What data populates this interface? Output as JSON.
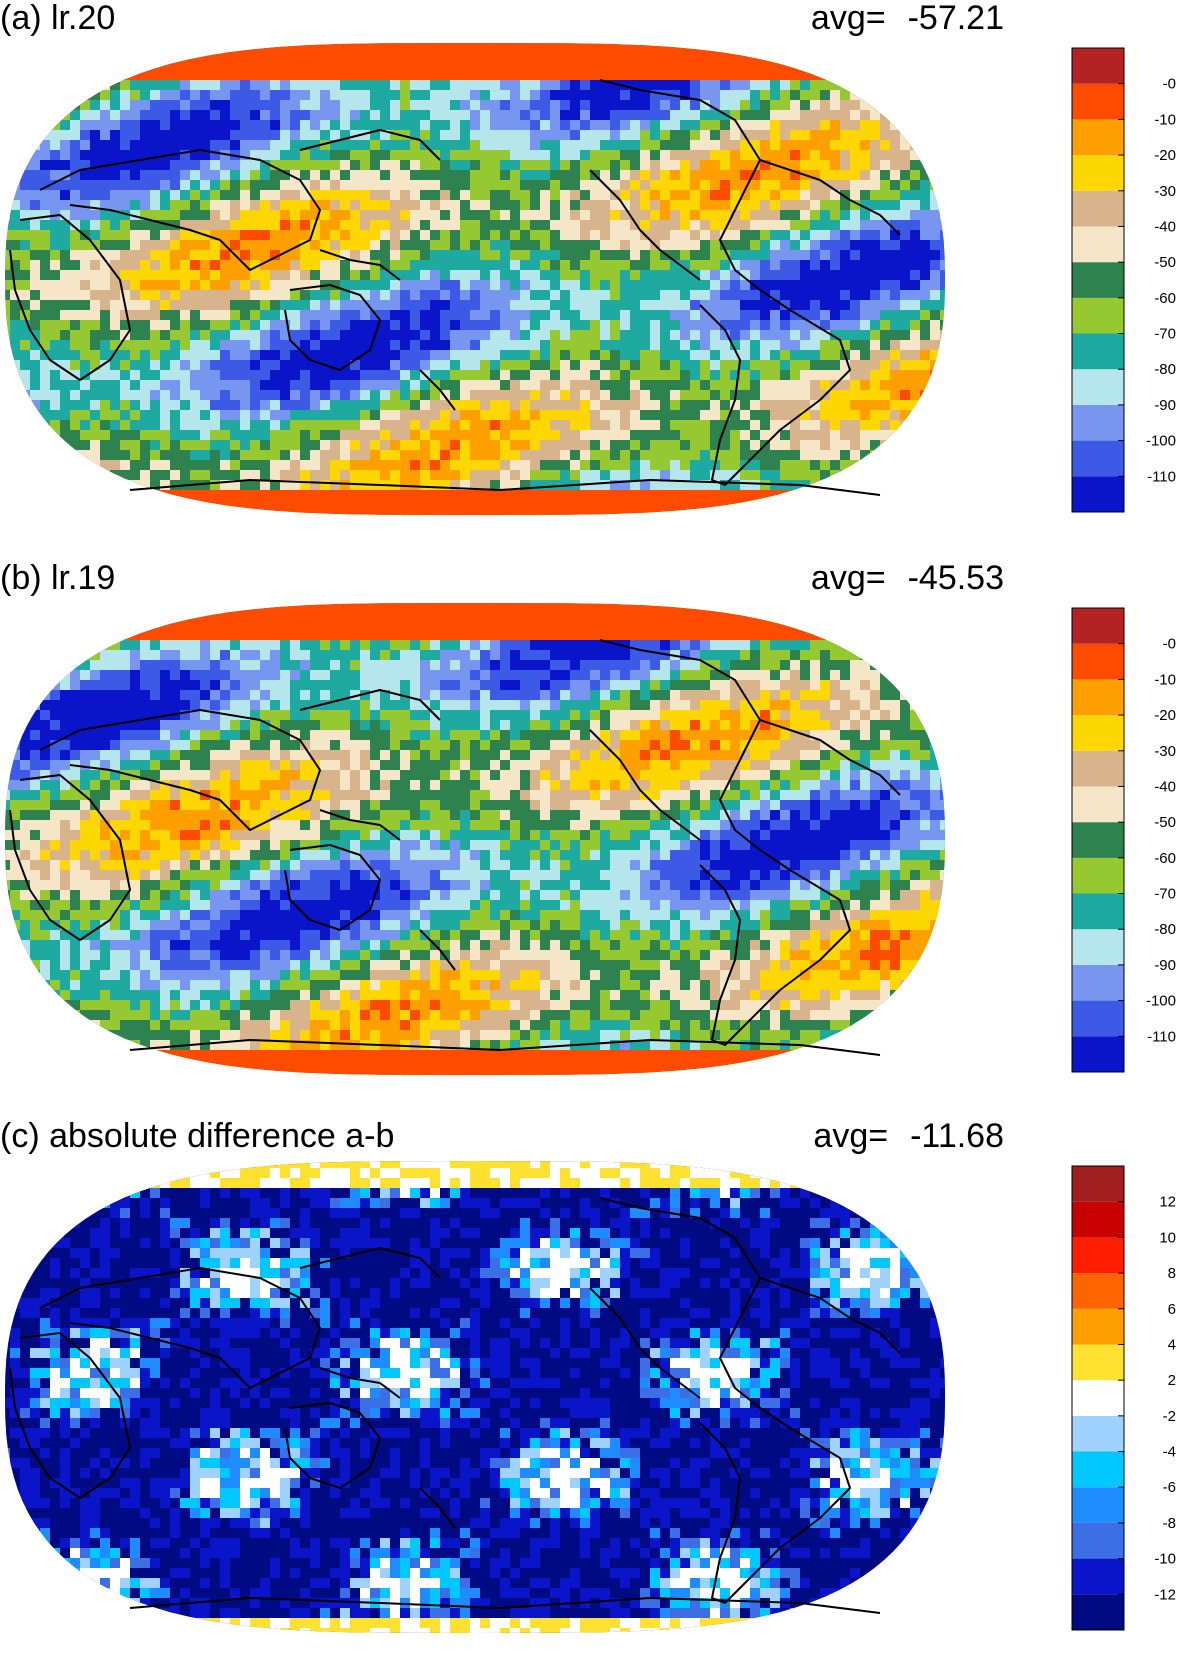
{
  "panels": [
    {
      "title": "(a) lr.20",
      "avg_label": "avg=",
      "avg_value": "-57.21",
      "scale": {
        "colors": [
          "#0a14c8",
          "#3c5ae6",
          "#7896f0",
          "#b4e6eb",
          "#1eaaa0",
          "#96c832",
          "#2d8250",
          "#f5e6c8",
          "#d7b48c",
          "#ffd700",
          "#ffa000",
          "#ff4b00",
          "#b42323"
        ],
        "labels": [
          "-110",
          "-100",
          "-90",
          "-80",
          "-70",
          "-60",
          "-50",
          "-40",
          "-30",
          "-20",
          "-10",
          "-0"
        ]
      }
    },
    {
      "title": "(b) lr.19",
      "avg_label": "avg=",
      "avg_value": "-45.53",
      "scale": {
        "colors": [
          "#0a14c8",
          "#3c5ae6",
          "#7896f0",
          "#b4e6eb",
          "#1eaaa0",
          "#96c832",
          "#2d8250",
          "#f5e6c8",
          "#d7b48c",
          "#ffd700",
          "#ffa000",
          "#ff4b00",
          "#b42323"
        ],
        "labels": [
          "-110",
          "-100",
          "-90",
          "-80",
          "-70",
          "-60",
          "-50",
          "-40",
          "-30",
          "-20",
          "-10",
          "-0"
        ]
      }
    },
    {
      "title": "(c) absolute difference a-b",
      "avg_label": "avg=",
      "avg_value": "-11.68",
      "scale": {
        "colors": [
          "#000a82",
          "#0a14c8",
          "#3c6ee6",
          "#1e8cff",
          "#00c8ff",
          "#a0d2ff",
          "#ffffff",
          "#ffe132",
          "#ffa000",
          "#ff6400",
          "#ff1e00",
          "#c80000",
          "#a01e1e"
        ],
        "labels": [
          "-12",
          "-10",
          "-8",
          "-6",
          "-4",
          "-2",
          "2",
          "4",
          "6",
          "8",
          "10",
          "12"
        ]
      }
    }
  ]
}
